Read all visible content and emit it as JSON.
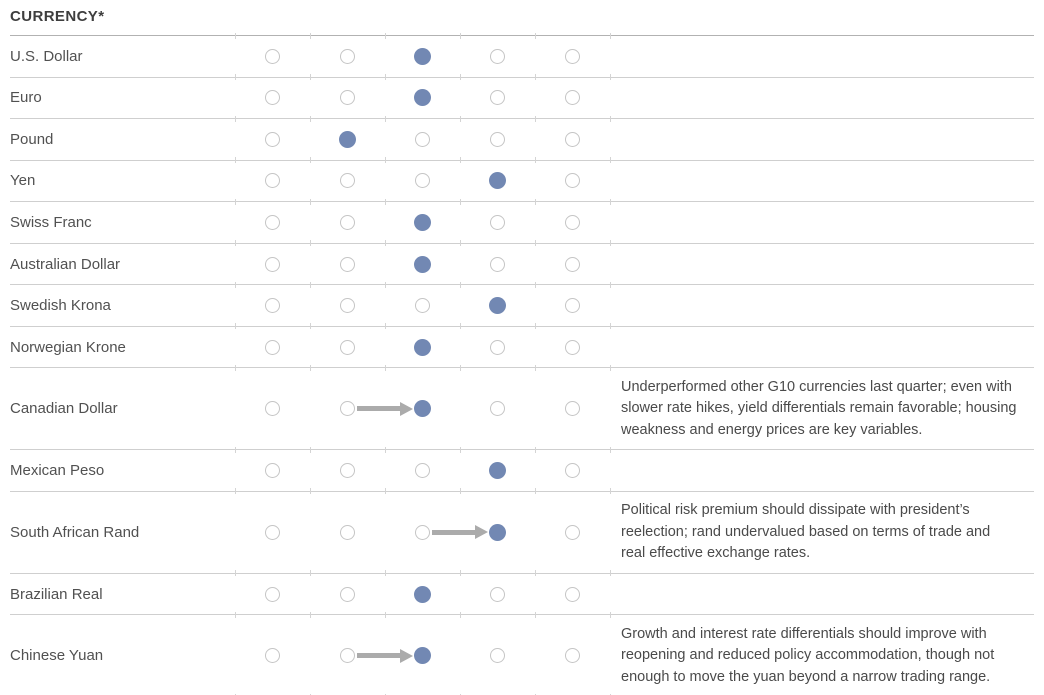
{
  "header": {
    "title": "CURRENCY*"
  },
  "colors": {
    "selected_dot": "#7288b3",
    "arrow": "#ababab",
    "row_line": "#cfcfcf",
    "header_line": "#b2b2b2"
  },
  "chart_data": {
    "type": "table",
    "title": "CURRENCY*",
    "scale": {
      "levels": 5
    },
    "rows": [
      {
        "label": "U.S. Dollar",
        "selected": 3
      },
      {
        "label": "Euro",
        "selected": 3
      },
      {
        "label": "Pound",
        "selected": 2
      },
      {
        "label": "Yen",
        "selected": 4
      },
      {
        "label": "Swiss Franc",
        "selected": 3
      },
      {
        "label": "Australian Dollar",
        "selected": 3
      },
      {
        "label": "Swedish Krona",
        "selected": 4
      },
      {
        "label": "Norwegian Krone",
        "selected": 3
      },
      {
        "label": "Canadian Dollar",
        "selected": 3,
        "arrow_from": 2,
        "note_lines": [
          "Underperformed other G10 currencies last quarter; even with",
          "slower rate hikes, yield differentials remain favorable; housing",
          "weakness and energy prices are key variables."
        ]
      },
      {
        "label": "Mexican Peso",
        "selected": 4
      },
      {
        "label": "South African Rand",
        "selected": 4,
        "arrow_from": 3,
        "note_lines": [
          "Political risk premium should dissipate with president’s",
          "reelection; rand undervalued based on terms of trade and",
          "real effective exchange rates."
        ]
      },
      {
        "label": "Brazilian Real",
        "selected": 3
      },
      {
        "label": "Chinese Yuan",
        "selected": 3,
        "arrow_from": 2,
        "note_lines": [
          "Growth and interest rate differentials should improve with",
          "reopening and reduced policy accommodation, though not",
          "enough to move the yuan beyond a narrow trading range."
        ]
      }
    ]
  }
}
